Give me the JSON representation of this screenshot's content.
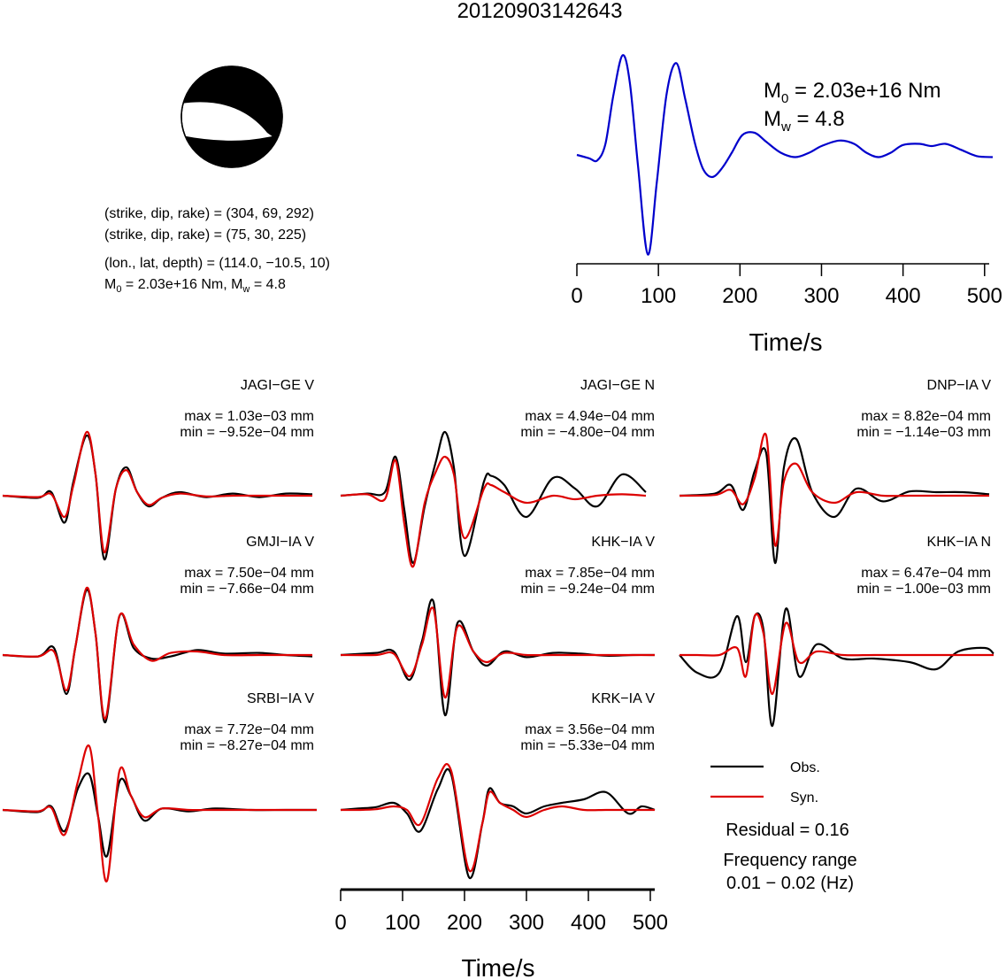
{
  "title": "20120903142643",
  "mechanism": {
    "line1": "(strike, dip, rake) = (304, 69, 292)",
    "line2": "(strike, dip, rake) = (75, 30, 225)",
    "line3": "(lon., lat, depth) = (114.0, −10.5, 10)",
    "line4_prefix_a": "M",
    "line4_sub_a": "0",
    "line4_mid": " = 2.03e+16 Nm, M",
    "line4_sub_b": "w",
    "line4_suffix": " = 4.8"
  },
  "stf": {
    "m0_label": "M",
    "m0_sub": "0",
    "m0_value": " = 2.03e+16 Nm",
    "mw_label": "M",
    "mw_sub": "w",
    "mw_value": " = 4.8",
    "xlabel": "Time/s",
    "xticks": [
      "0",
      "100",
      "200",
      "300",
      "400",
      "500"
    ],
    "color": "#0000cc"
  },
  "legend": {
    "obs": "Obs.",
    "syn": "Syn.",
    "obs_color": "#000000",
    "syn_color": "#dd0000"
  },
  "residual": "Residual = 0.16",
  "freq_label": "Frequency range",
  "freq_value": "0.01 − 0.02 (Hz)",
  "waveform_axis": {
    "xlabel": "Time/s",
    "xticks": [
      "0",
      "100",
      "200",
      "300",
      "400",
      "500"
    ]
  },
  "stations": [
    {
      "name": "JAGI−GE V",
      "max": "max = 1.03e−03 mm",
      "min": "min = −9.52e−04 mm"
    },
    {
      "name": "JAGI−GE N",
      "max": "max = 4.94e−04 mm",
      "min": "min = −4.80e−04 mm"
    },
    {
      "name": "DNP−IA V",
      "max": "max = 8.82e−04 mm",
      "min": "min = −1.14e−03 mm"
    },
    {
      "name": "GMJI−IA V",
      "max": "max = 7.50e−04 mm",
      "min": "min = −7.66e−04 mm"
    },
    {
      "name": "KHK−IA V",
      "max": "max = 7.85e−04 mm",
      "min": "min = −9.24e−04 mm"
    },
    {
      "name": "KHK−IA N",
      "max": "max = 6.47e−04 mm",
      "min": "min = −1.00e−03 mm"
    },
    {
      "name": "SRBI−IA V",
      "max": "max = 7.72e−04 mm",
      "min": "min = −8.27e−04 mm"
    },
    {
      "name": "KRK−IA V",
      "max": "max = 3.56e−04 mm",
      "min": "min = −5.33e−04 mm"
    }
  ],
  "chart_data": [
    {
      "type": "line",
      "name": "source time function",
      "xlabel": "Time/s",
      "xlim": [
        0,
        510
      ],
      "x": [
        0,
        15,
        25,
        35,
        45,
        56,
        65,
        75,
        87,
        98,
        110,
        122,
        133,
        145,
        155,
        166,
        178,
        190,
        203,
        218,
        232,
        250,
        268,
        285,
        300,
        322,
        340,
        355,
        370,
        385,
        400,
        420,
        435,
        452,
        470,
        490,
        510
      ],
      "y": [
        0.0,
        -0.03,
        -0.05,
        0.1,
        0.55,
        0.9,
        0.65,
        -0.1,
        -0.9,
        -0.25,
        0.55,
        0.83,
        0.5,
        0.1,
        -0.13,
        -0.2,
        -0.12,
        0.02,
        0.18,
        0.2,
        0.12,
        0.02,
        -0.02,
        0.02,
        0.08,
        0.13,
        0.1,
        0.02,
        -0.02,
        0.02,
        0.09,
        0.1,
        0.08,
        0.1,
        0.05,
        -0.01,
        -0.02
      ]
    },
    {
      "type": "line",
      "xlabel": "Time/s",
      "xlim": [
        0,
        510
      ],
      "series": [
        {
          "name": "Obs.",
          "color": "#000000"
        },
        {
          "name": "Syn.",
          "color": "#dd0000"
        }
      ],
      "stations": [
        {
          "name": "JAGI−GE V",
          "obs_x": [
            0,
            40,
            55,
            70,
            80,
            95,
            105,
            115,
            128,
            140,
            152,
            165,
            180,
            200,
            230,
            260,
            290,
            320,
            350
          ],
          "obs_y": [
            0.0,
            -0.03,
            0.05,
            -0.38,
            0.2,
            0.85,
            0.3,
            -0.9,
            0.1,
            0.4,
            0.05,
            -0.15,
            -0.03,
            0.05,
            -0.02,
            0.03,
            -0.02,
            0.03,
            0.02
          ],
          "syn_x": [
            0,
            40,
            55,
            70,
            80,
            95,
            105,
            115,
            128,
            140,
            152,
            165,
            180,
            200,
            230,
            260,
            290,
            320,
            350
          ],
          "syn_y": [
            0.0,
            -0.02,
            0.02,
            -0.3,
            0.15,
            0.9,
            0.3,
            -0.8,
            0.1,
            0.36,
            0.05,
            -0.13,
            -0.03,
            0.03,
            -0.01,
            0.0,
            0.0,
            0.0,
            0.0
          ]
        },
        {
          "name": "JAGI−GE N",
          "obs_x": [
            0,
            30,
            50,
            62,
            72,
            82,
            95,
            108,
            118,
            128,
            140,
            162,
            170,
            185,
            210,
            240,
            265,
            290,
            318,
            345
          ],
          "obs_y": [
            0.0,
            0.03,
            0.05,
            0.55,
            -0.2,
            -0.95,
            -0.15,
            0.5,
            0.9,
            0.4,
            -0.85,
            0.2,
            0.28,
            0.15,
            -0.3,
            0.25,
            0.1,
            -0.15,
            0.3,
            0.05
          ],
          "syn_x": [
            0,
            30,
            50,
            62,
            72,
            82,
            95,
            108,
            118,
            128,
            140,
            162,
            170,
            185,
            210,
            240,
            265,
            290,
            318,
            345
          ],
          "syn_y": [
            0.0,
            0.02,
            -0.05,
            0.5,
            -0.4,
            -1.0,
            -0.1,
            0.35,
            0.55,
            0.3,
            -0.6,
            0.1,
            0.15,
            0.05,
            -0.1,
            0.0,
            -0.05,
            0.0,
            0.02,
            0.0
          ]
        },
        {
          "name": "DNP−IA V",
          "obs_x": [
            0,
            40,
            58,
            72,
            85,
            98,
            108,
            118,
            132,
            150,
            175,
            200,
            230,
            260,
            290,
            320,
            350
          ],
          "obs_y": [
            0.0,
            0.03,
            0.15,
            -0.2,
            0.35,
            0.6,
            -0.95,
            0.4,
            0.8,
            0.05,
            -0.3,
            0.1,
            -0.08,
            0.06,
            0.05,
            0.05,
            0.02
          ],
          "syn_x": [
            0,
            40,
            58,
            72,
            85,
            98,
            108,
            118,
            132,
            150,
            175,
            200,
            230,
            260,
            290,
            320,
            350
          ],
          "syn_y": [
            0.0,
            0.01,
            0.08,
            -0.12,
            0.25,
            0.85,
            -0.7,
            0.2,
            0.45,
            0.05,
            -0.1,
            0.05,
            0.0,
            0.0,
            0.0,
            0.0,
            0.0
          ]
        },
        {
          "name": "GMJI−IA V",
          "obs_x": [
            0,
            40,
            58,
            72,
            82,
            95,
            105,
            116,
            132,
            148,
            168,
            190,
            220,
            250,
            290,
            320,
            350
          ],
          "obs_y": [
            0.0,
            -0.02,
            0.1,
            -0.55,
            0.1,
            0.92,
            0.3,
            -0.95,
            0.55,
            0.1,
            -0.05,
            -0.02,
            0.07,
            0.02,
            0.03,
            0.0,
            -0.02
          ],
          "syn_x": [
            0,
            40,
            58,
            72,
            82,
            95,
            105,
            116,
            132,
            148,
            168,
            190,
            220,
            250,
            290,
            320,
            350
          ],
          "syn_y": [
            0.0,
            -0.02,
            0.05,
            -0.5,
            0.1,
            0.95,
            0.3,
            -0.9,
            0.55,
            0.15,
            -0.08,
            0.03,
            0.05,
            0.0,
            0.0,
            0.0,
            0.0
          ]
        },
        {
          "name": "KHK−IA V",
          "obs_x": [
            0,
            40,
            60,
            78,
            92,
            105,
            118,
            132,
            150,
            165,
            185,
            210,
            240,
            270,
            300,
            330,
            355
          ],
          "obs_y": [
            0.0,
            0.03,
            0.05,
            -0.35,
            0.2,
            0.75,
            -0.85,
            0.45,
            0.05,
            -0.15,
            0.05,
            -0.03,
            0.03,
            0.02,
            -0.01,
            0.0,
            0.0
          ],
          "syn_x": [
            0,
            40,
            60,
            78,
            92,
            105,
            118,
            132,
            150,
            165,
            185,
            210,
            240,
            270,
            300,
            330,
            355
          ],
          "syn_y": [
            0.0,
            0.0,
            0.02,
            -0.3,
            0.15,
            0.65,
            -0.6,
            0.4,
            0.05,
            -0.1,
            0.03,
            0.0,
            0.0,
            0.0,
            0.0,
            0.0,
            0.0
          ]
        },
        {
          "name": "KHK−IA N",
          "obs_x": [
            0,
            20,
            45,
            65,
            75,
            85,
            95,
            105,
            120,
            135,
            155,
            185,
            220,
            260,
            290,
            315,
            345,
            355
          ],
          "obs_y": [
            0.0,
            -0.25,
            -0.25,
            0.55,
            -0.1,
            0.55,
            0.35,
            -1.0,
            0.65,
            -0.3,
            0.15,
            -0.05,
            -0.05,
            -0.1,
            -0.2,
            0.05,
            0.1,
            0.02
          ],
          "syn_x": [
            0,
            20,
            45,
            65,
            75,
            85,
            95,
            105,
            120,
            135,
            155,
            185,
            220,
            260,
            290,
            315,
            345,
            355
          ],
          "syn_y": [
            0.0,
            0.0,
            0.0,
            0.1,
            -0.3,
            0.55,
            0.3,
            -0.55,
            0.45,
            -0.1,
            0.05,
            0.0,
            0.0,
            0.0,
            0.0,
            0.0,
            0.0,
            0.0
          ]
        },
        {
          "name": "SRBI−IA V",
          "obs_x": [
            0,
            40,
            55,
            70,
            85,
            98,
            108,
            118,
            132,
            145,
            160,
            180,
            210,
            240,
            280,
            320,
            355
          ],
          "obs_y": [
            0.0,
            -0.03,
            0.05,
            -0.3,
            0.3,
            0.5,
            -0.1,
            -0.65,
            0.4,
            0.2,
            -0.15,
            0.02,
            -0.02,
            0.02,
            0.0,
            0.0,
            0.0
          ],
          "syn_x": [
            0,
            40,
            55,
            70,
            85,
            98,
            108,
            118,
            132,
            145,
            160,
            180,
            210,
            240,
            280,
            320,
            355
          ],
          "syn_y": [
            0.0,
            -0.02,
            0.03,
            -0.35,
            0.4,
            0.9,
            -0.1,
            -1.0,
            0.55,
            0.2,
            -0.1,
            0.02,
            0.0,
            0.0,
            0.0,
            0.0,
            0.0
          ]
        },
        {
          "name": "KRK−IA V",
          "obs_x": [
            0,
            20,
            40,
            60,
            75,
            90,
            110,
            125,
            145,
            160,
            168,
            180,
            195,
            210,
            230,
            250,
            275,
            300,
            325,
            340,
            355
          ],
          "obs_y": [
            0.0,
            0.02,
            0.04,
            0.1,
            -0.05,
            -0.3,
            0.3,
            0.5,
            -0.95,
            -0.2,
            0.3,
            0.1,
            0.05,
            -0.05,
            0.05,
            0.1,
            0.15,
            0.25,
            -0.05,
            0.05,
            0.0
          ],
          "syn_x": [
            0,
            20,
            40,
            60,
            75,
            90,
            110,
            125,
            145,
            160,
            168,
            180,
            195,
            210,
            230,
            250,
            275,
            300,
            325,
            340,
            355
          ],
          "syn_y": [
            0.0,
            0.0,
            0.01,
            0.05,
            0.0,
            -0.2,
            0.45,
            0.55,
            -0.85,
            -0.2,
            0.25,
            0.1,
            0.0,
            -0.1,
            0.0,
            0.05,
            0.0,
            0.0,
            0.0,
            0.0,
            0.0
          ]
        }
      ]
    }
  ]
}
